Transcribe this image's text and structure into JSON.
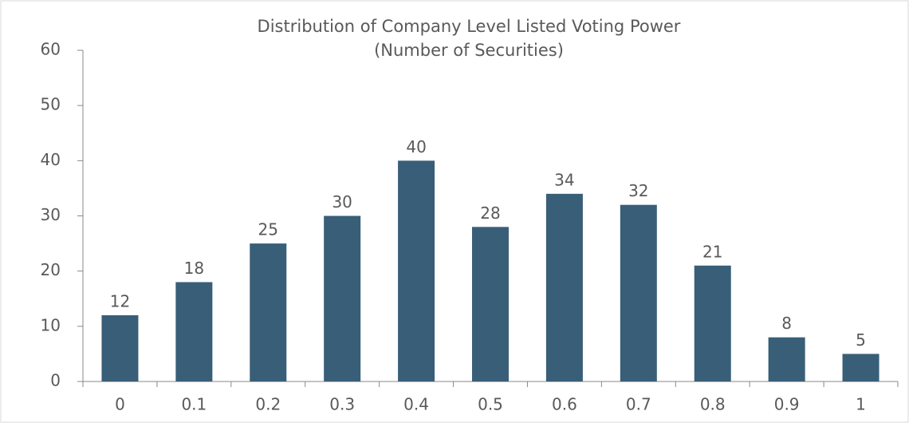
{
  "chart_data": {
    "type": "bar",
    "title": "Distribution of Company Level Listed Voting Power",
    "subtitle": "(Number of Securities)",
    "categories": [
      "0",
      "0.1",
      "0.2",
      "0.3",
      "0.4",
      "0.5",
      "0.6",
      "0.7",
      "0.8",
      "0.9",
      "1"
    ],
    "values": [
      12,
      18,
      25,
      30,
      40,
      28,
      34,
      32,
      21,
      8,
      5
    ],
    "color": "#395e78",
    "ylim": [
      0,
      60
    ],
    "yticks": [
      0,
      10,
      20,
      30,
      40,
      50,
      60
    ],
    "grid": false
  }
}
